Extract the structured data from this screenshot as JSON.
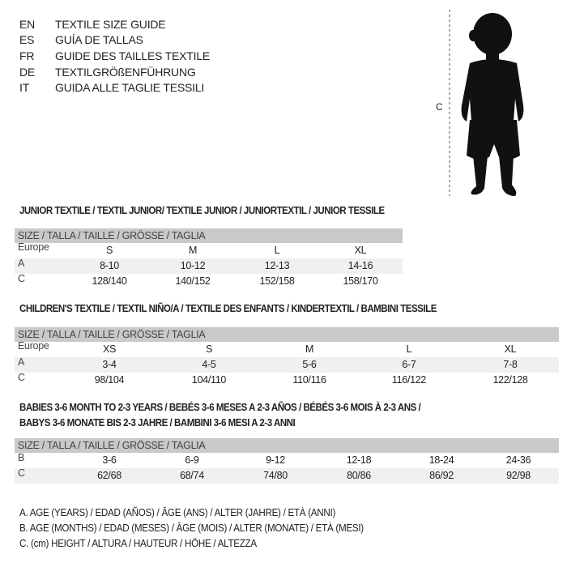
{
  "languages": [
    {
      "code": "EN",
      "name": "TEXTILE SIZE GUIDE"
    },
    {
      "code": "ES",
      "name": "GUÍA DE TALLAS"
    },
    {
      "code": "FR",
      "name": "GUIDE DES TAILLES TEXTILE"
    },
    {
      "code": "DE",
      "name": "TEXTILGRÖßENFÜHRUNG"
    },
    {
      "code": "IT",
      "name": "GUIDA ALLE TAGLIE TESSILI"
    }
  ],
  "figure": {
    "measure_label": "C",
    "icon": "child-silhouette"
  },
  "junior": {
    "title": "JUNIOR TEXTILE / TEXTIL JUNIOR/ TEXTILE JUNIOR / JUNIORTEXTIL / JUNIOR TESSILE",
    "header": "SIZE / TALLA / TAILLE / GRÖSSE / TAGLIA",
    "rows": [
      {
        "label": "Europe",
        "values": [
          "S",
          "M",
          "L",
          "XL"
        ]
      },
      {
        "label": "A",
        "values": [
          "8-10",
          "10-12",
          "12-13",
          "14-16"
        ]
      },
      {
        "label": "C",
        "values": [
          "128/140",
          "140/152",
          "152/158",
          "158/170"
        ]
      }
    ]
  },
  "children": {
    "title": "CHILDREN'S TEXTILE / TEXTIL NIÑO/A / TEXTILE DES ENFANTS / KINDERTEXTIL / BAMBINI TESSILE",
    "header": "SIZE / TALLA / TAILLE / GRÖSSE / TAGLIA",
    "rows": [
      {
        "label": "Europe",
        "values": [
          "XS",
          "S",
          "M",
          "L",
          "XL"
        ]
      },
      {
        "label": "A",
        "values": [
          "3-4",
          "4-5",
          "5-6",
          "6-7",
          "7-8"
        ]
      },
      {
        "label": "C",
        "values": [
          "98/104",
          "104/110",
          "110/116",
          "116/122",
          "122/128"
        ]
      }
    ]
  },
  "babies": {
    "title_line1": "BABIES 3-6 MONTH TO 2-3 YEARS / BEBÉS 3-6 MESES A 2-3 AÑOS / BÉBÉS 3-6 MOIS À 2-3 ANS /",
    "title_line2": "BABYS 3-6 MONATE BIS 2-3 JAHRE / BAMBINI 3-6 MESI A 2-3 ANNI",
    "header": "SIZE / TALLA / TAILLE / GRÖSSE / TAGLIA",
    "rows": [
      {
        "label": "B",
        "values": [
          "3-6",
          "6-9",
          "9-12",
          "12-18",
          "18-24",
          "24-36"
        ]
      },
      {
        "label": "C",
        "values": [
          "62/68",
          "68/74",
          "74/80",
          "80/86",
          "86/92",
          "92/98"
        ]
      }
    ]
  },
  "legend": [
    "A. AGE (YEARS) / EDAD (AÑOS) / ÂGE (ANS) / ALTER (JAHRE) / ETÀ (ANNI)",
    "B. AGE (MONTHS) / EDAD (MESES) / ÂGE (MOIS) / ALTER (MONATE) / ETÀ (MESI)",
    "C. (cm) HEIGHT / ALTURA / HAUTEUR / HÖHE / ALTEZZA"
  ]
}
